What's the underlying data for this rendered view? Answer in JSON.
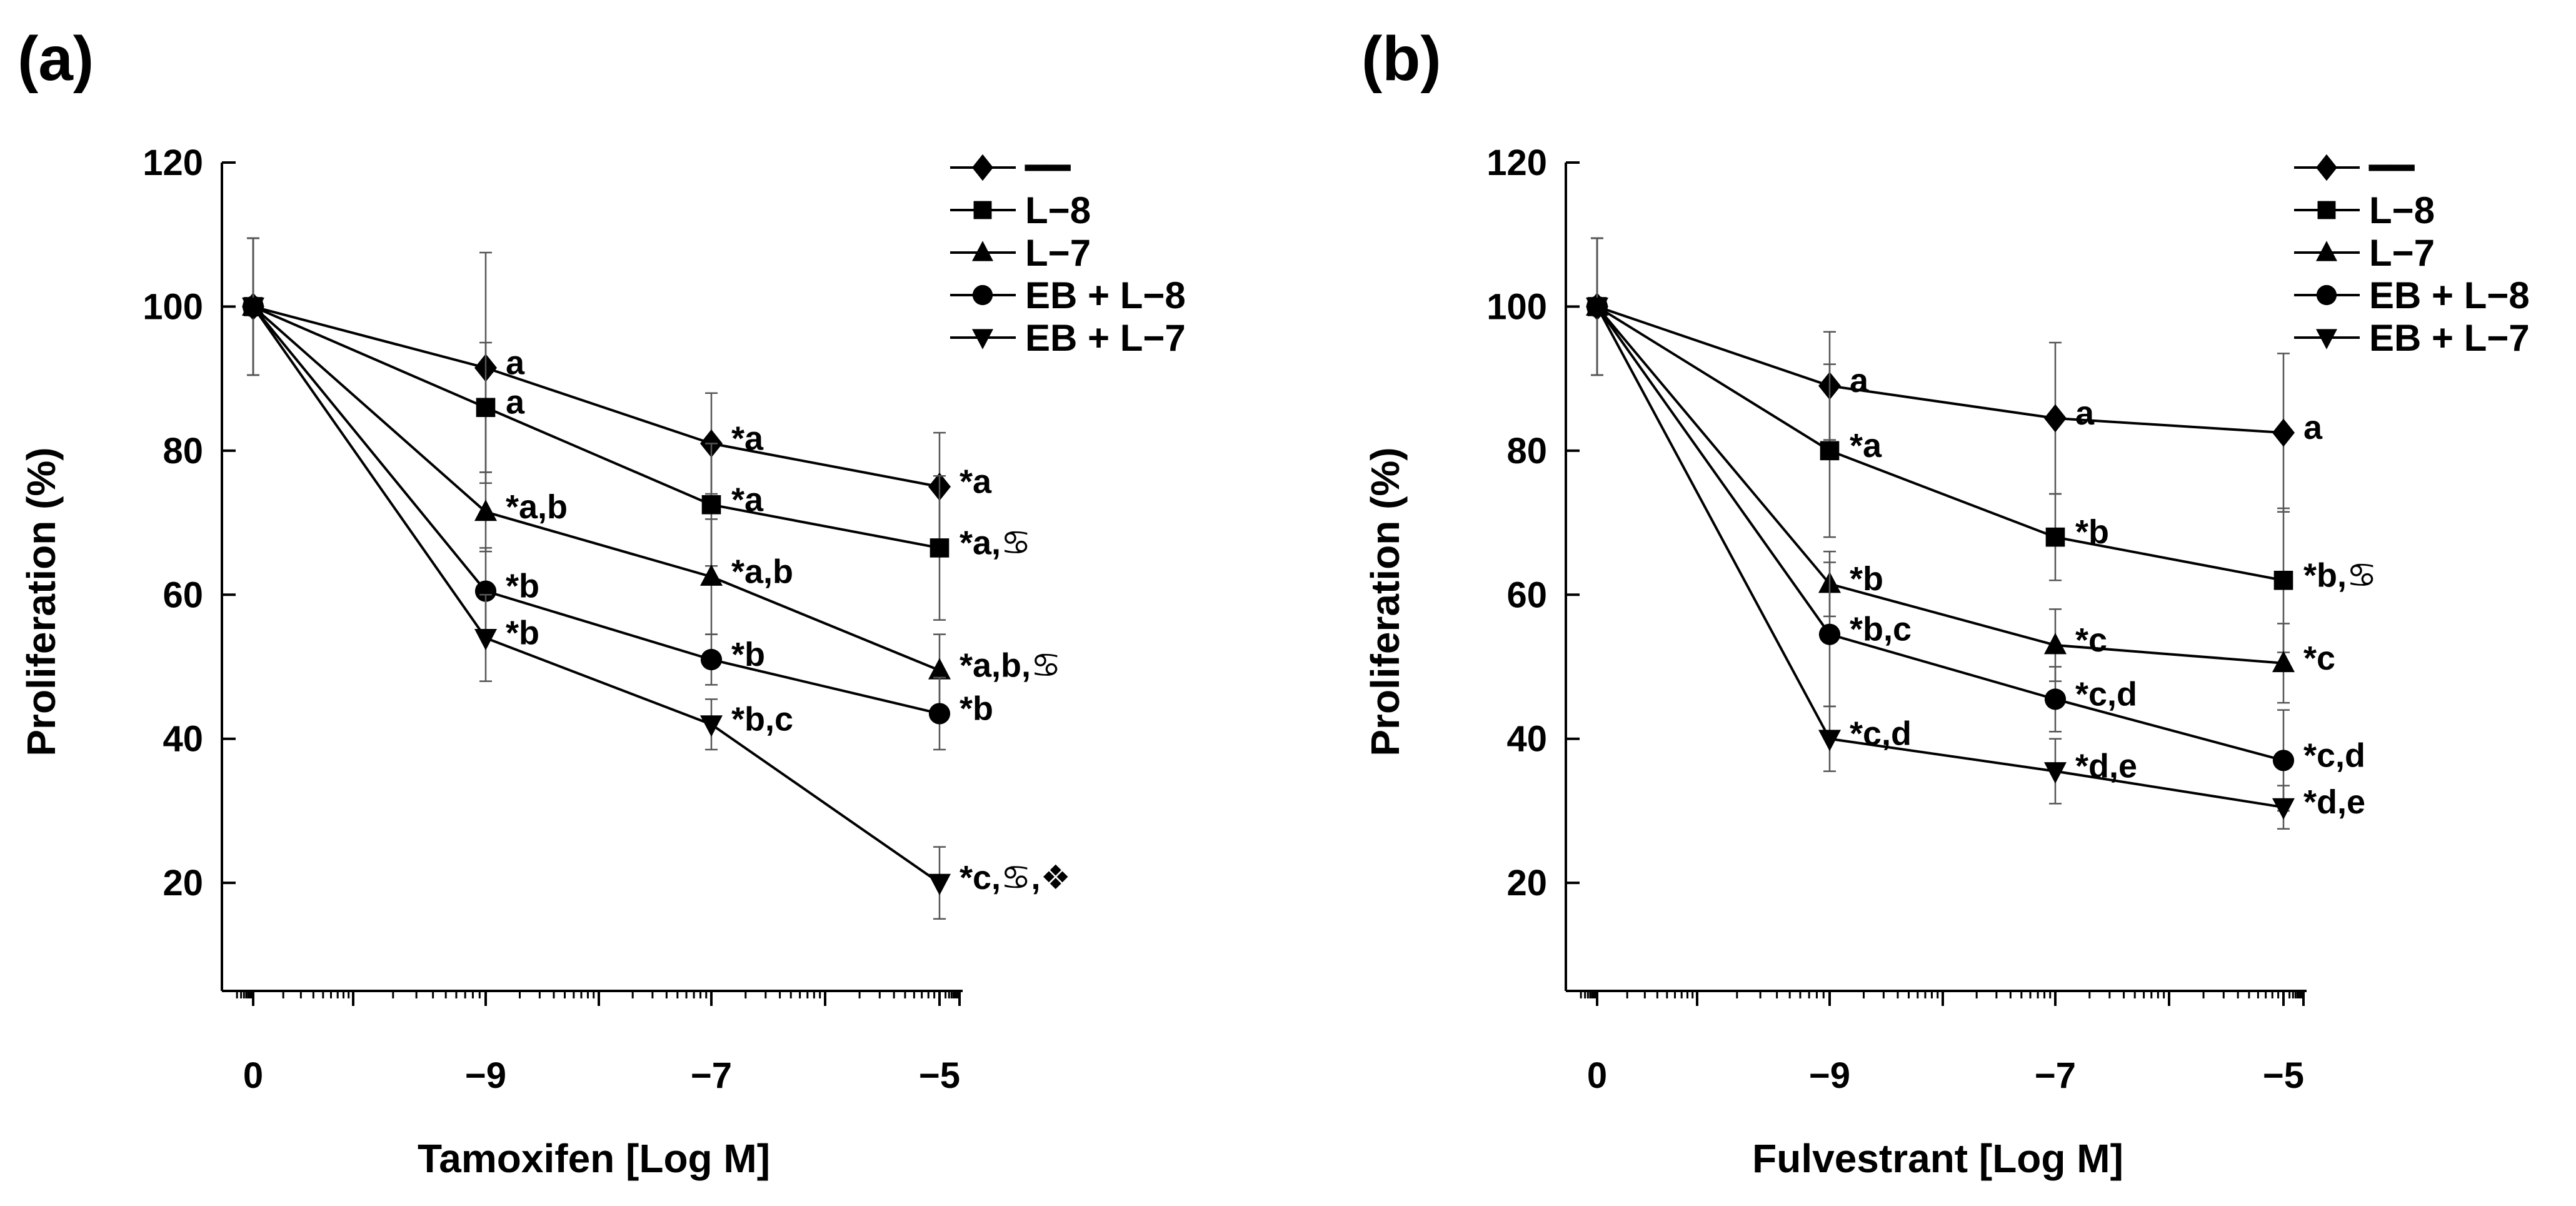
{
  "chart_data": [
    {
      "type": "line",
      "panel_label": "(a)",
      "xlabel": "Tamoxifen [Log M]",
      "ylabel": "Proliferation (%)",
      "x_ticks": [
        "0",
        "−9",
        "−7",
        "−5"
      ],
      "y_ticks": [
        20,
        40,
        60,
        80,
        100,
        120
      ],
      "ylim": [
        5,
        120
      ],
      "legend_position": "top-right",
      "series": [
        {
          "name": "━━",
          "marker": "diamond",
          "values": [
            100,
            91.5,
            81,
            75
          ],
          "errors": [
            9.5,
            16,
            7,
            7.5
          ],
          "labels": [
            "",
            "a",
            "*a",
            "*a"
          ]
        },
        {
          "name": "L−8",
          "marker": "square",
          "values": [
            100,
            86,
            72.5,
            66.5
          ],
          "errors": [
            9.5,
            9,
            8.5,
            10
          ],
          "labels": [
            "",
            "a",
            "*a",
            "*a,♋"
          ]
        },
        {
          "name": "L−7",
          "marker": "triangle-up",
          "values": [
            100,
            71.5,
            62.5,
            49.5
          ],
          "errors": [
            9.5,
            5.5,
            8,
            5
          ],
          "labels": [
            "",
            "*a,b",
            "*a,b",
            "*a,b,♋"
          ]
        },
        {
          "name": "EB + L−8",
          "marker": "circle",
          "values": [
            100,
            60.5,
            51,
            43.5
          ],
          "errors": [
            9.5,
            6,
            3.5,
            5
          ],
          "labels": [
            "",
            "*b",
            "*b",
            "*b"
          ]
        },
        {
          "name": "EB + L−7",
          "marker": "triangle-down",
          "values": [
            100,
            54,
            42,
            20
          ],
          "errors": [
            9.5,
            6,
            3.5,
            5
          ],
          "labels": [
            "",
            "*b",
            "*b,c",
            "*c,♋,❖"
          ]
        }
      ]
    },
    {
      "type": "line",
      "panel_label": "(b)",
      "xlabel": "Fulvestrant [Log M]",
      "ylabel": "Proliferation (%)",
      "x_ticks": [
        "0",
        "−9",
        "−7",
        "−5"
      ],
      "y_ticks": [
        20,
        40,
        60,
        80,
        100,
        120
      ],
      "ylim": [
        5,
        120
      ],
      "legend_position": "top-right",
      "series": [
        {
          "name": "━━",
          "marker": "diamond",
          "values": [
            100,
            89,
            84.5,
            82.5
          ],
          "errors": [
            9.5,
            7.5,
            10.5,
            11
          ],
          "labels": [
            "",
            "a",
            "a",
            "a"
          ]
        },
        {
          "name": "L−8",
          "marker": "square",
          "values": [
            100,
            80,
            68,
            62
          ],
          "errors": [
            9.5,
            12,
            6,
            10
          ],
          "labels": [
            "",
            "*a",
            "*b",
            "*b,♋"
          ]
        },
        {
          "name": "L−7",
          "marker": "triangle-up",
          "values": [
            100,
            61.5,
            53,
            50.5
          ],
          "errors": [
            9.5,
            4.5,
            5,
            5.5
          ],
          "labels": [
            "",
            "*b",
            "*c",
            "*c"
          ]
        },
        {
          "name": "EB + L−8",
          "marker": "circle",
          "values": [
            100,
            54.5,
            45.5,
            37
          ],
          "errors": [
            9.5,
            10,
            4.5,
            7
          ],
          "labels": [
            "",
            "*b,c",
            "*c,d",
            "*c,d"
          ]
        },
        {
          "name": "EB + L−7",
          "marker": "triangle-down",
          "values": [
            100,
            40,
            35.5,
            30.5
          ],
          "errors": [
            9.5,
            4.5,
            4.5,
            3
          ],
          "labels": [
            "",
            "*c,d",
            "*d,e",
            "*d,e"
          ]
        }
      ]
    }
  ]
}
